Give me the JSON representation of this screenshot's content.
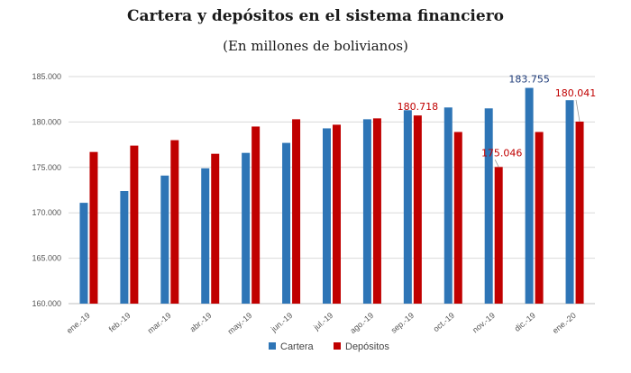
{
  "chart_data": {
    "type": "bar",
    "title": "Cartera y depósitos en el sistema financiero",
    "subtitle": "(En millones de bolivianos)",
    "categories": [
      "ene.-19",
      "feb.-19",
      "mar.-19",
      "abr.-19",
      "may.-19",
      "jun.-19",
      "jul.-19",
      "ago.-19",
      "sep.-19",
      "oct.-19",
      "nov.-19",
      "dic.-19",
      "ene.-20"
    ],
    "series": [
      {
        "name": "Cartera",
        "color": "#2e75b6",
        "values": [
          171100,
          172400,
          174100,
          174900,
          176600,
          177700,
          179300,
          180300,
          181300,
          181600,
          181500,
          183755,
          182400
        ]
      },
      {
        "name": "Depósitos",
        "color": "#c00000",
        "values": [
          176700,
          177400,
          178000,
          176500,
          179500,
          180300,
          179700,
          180400,
          180718,
          178900,
          175046,
          178900,
          180041
        ]
      }
    ],
    "ylim": [
      160000,
      185000
    ],
    "yticks": [
      {
        "value": 160000,
        "label": "160.000"
      },
      {
        "value": 165000,
        "label": "165.000"
      },
      {
        "value": 170000,
        "label": "170.000"
      },
      {
        "value": 175000,
        "label": "175.000"
      },
      {
        "value": 180000,
        "label": "180.000"
      },
      {
        "value": 185000,
        "label": "185.000"
      }
    ],
    "grid": true,
    "legend_position": "bottom",
    "data_labels": [
      {
        "series": 1,
        "index": 8,
        "text": "180.718",
        "color": "#c00000"
      },
      {
        "series": 0,
        "index": 11,
        "text": "183.755",
        "color": "#1f3c7a"
      },
      {
        "series": 1,
        "index": 10,
        "text": "175.046",
        "color": "#c00000"
      },
      {
        "series": 1,
        "index": 12,
        "text": "180.041",
        "color": "#c00000"
      }
    ]
  }
}
